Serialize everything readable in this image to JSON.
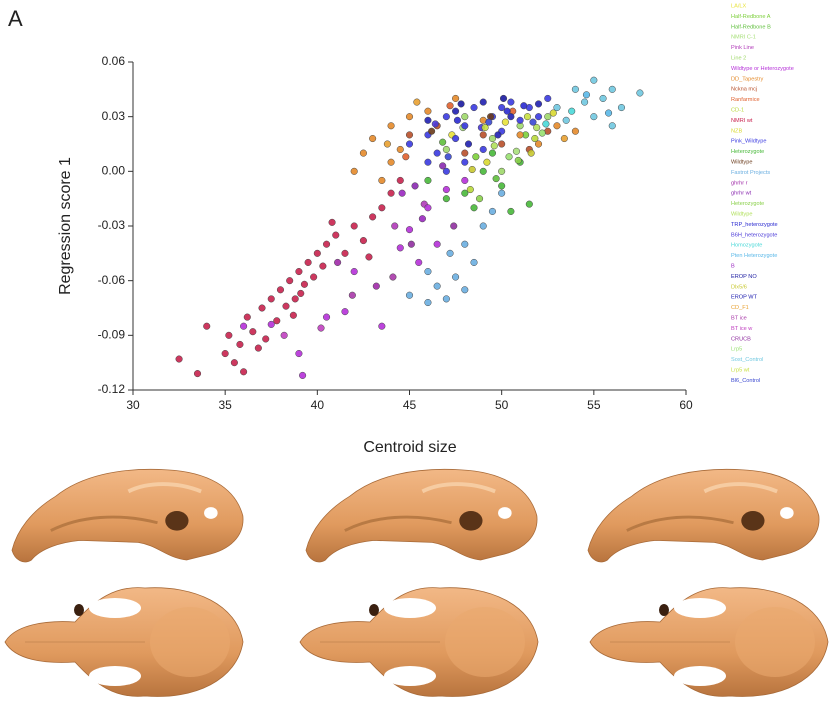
{
  "chart_data": {
    "type": "scatter",
    "panel_label": "A",
    "xlabel": "Centroid size",
    "ylabel": "Regression score 1",
    "xlim": [
      30,
      60
    ],
    "xticks": [
      30,
      35,
      40,
      45,
      50,
      55,
      60
    ],
    "ylim": [
      -0.12,
      0.06
    ],
    "yticks": [
      0.06,
      0.03,
      {
        "value": 0,
        "label": "0.00"
      },
      -0.03,
      -0.06,
      -0.09,
      -0.12
    ],
    "series": [
      {
        "name": "LA/LX",
        "color": "#e8e23a",
        "x": [
          47.3,
          50.2
        ],
        "y": [
          0.02,
          0.027
        ]
      },
      {
        "name": "Half-Redbone A",
        "color": "#7ccf3a",
        "x": [
          48.6,
          51.3
        ],
        "y": [
          0.008,
          0.02
        ]
      },
      {
        "name": "Half-Redbone B",
        "color": "#5fbf3c",
        "x": [
          46.8,
          49.7
        ],
        "y": [
          0.016,
          -0.004
        ]
      },
      {
        "name": "NMRI C-1",
        "color": "#a8e07a",
        "x": [
          47.9,
          50.8
        ],
        "y": [
          0.024,
          0.011
        ]
      },
      {
        "name": "Pink Line",
        "color": "#b03ab8",
        "x": [
          44.2,
          45.8
        ],
        "y": [
          -0.03,
          -0.018
        ]
      },
      {
        "name": "Line 2",
        "color": "#9fd86a",
        "x": [
          47,
          48,
          49.5,
          51,
          52.5,
          50
        ],
        "y": [
          0.012,
          0.03,
          0.018,
          0.025,
          0.03,
          0
        ]
      },
      {
        "name": "Wildtype or Heterozygote",
        "color": "#b530d8",
        "x": [
          36,
          37.5,
          39,
          39.2,
          40.5,
          41.5,
          43.5,
          42,
          44.5,
          45,
          46,
          47,
          48,
          46.5,
          45.5
        ],
        "y": [
          -0.085,
          -0.084,
          -0.1,
          -0.112,
          -0.08,
          -0.077,
          -0.085,
          -0.055,
          -0.042,
          -0.032,
          -0.02,
          -0.01,
          -0.005,
          -0.04,
          -0.05
        ]
      },
      {
        "name": "DD_Tapestry",
        "color": "#e48a2a",
        "x": [
          42,
          42.5,
          43,
          44,
          44.5,
          45,
          46,
          47.5,
          49,
          51,
          52,
          53,
          54,
          44,
          43.5
        ],
        "y": [
          0,
          0.01,
          0.018,
          0.025,
          0.012,
          0.03,
          0.033,
          0.04,
          0.028,
          0.02,
          0.015,
          0.025,
          0.022,
          0.005,
          -0.005
        ]
      },
      {
        "name": "Nckna mcj",
        "color": "#b8502a",
        "x": [
          45,
          46.5,
          48,
          50,
          51.5,
          52.5,
          49
        ],
        "y": [
          0.02,
          0.025,
          0.01,
          0.015,
          0.012,
          0.022,
          0.02
        ]
      },
      {
        "name": "Ranfarmice",
        "color": "#e0602e",
        "x": [
          44.8,
          47.2,
          50.6
        ],
        "y": [
          0.008,
          0.036,
          0.033
        ]
      },
      {
        "name": "CD-1",
        "color": "#b8d83a",
        "x": [
          48.3,
          51.8
        ],
        "y": [
          -0.01,
          0.018
        ]
      },
      {
        "name": "NMRI wt",
        "color": "#c8224e",
        "x": [
          32.5,
          33.5,
          34,
          35,
          35.2,
          35.8,
          36,
          36.2,
          36.5,
          37,
          37.2,
          37.5,
          37.8,
          38,
          38.3,
          38.5,
          38.8,
          39,
          39.3,
          39.5,
          39.8,
          40,
          40.3,
          40.5,
          41,
          41.5,
          42,
          42.5,
          43,
          43.5,
          44,
          44.5,
          36.8,
          35.5,
          38.7,
          40.8,
          42.8,
          39.1
        ],
        "y": [
          -0.103,
          -0.111,
          -0.085,
          -0.1,
          -0.09,
          -0.095,
          -0.11,
          -0.08,
          -0.088,
          -0.075,
          -0.092,
          -0.07,
          -0.082,
          -0.065,
          -0.074,
          -0.06,
          -0.07,
          -0.055,
          -0.062,
          -0.05,
          -0.058,
          -0.045,
          -0.052,
          -0.04,
          -0.035,
          -0.045,
          -0.03,
          -0.038,
          -0.025,
          -0.02,
          -0.012,
          -0.005,
          -0.097,
          -0.105,
          -0.079,
          -0.028,
          -0.047,
          -0.067
        ]
      },
      {
        "name": "NZB",
        "color": "#d8d830",
        "x": [
          49.2,
          52.8
        ],
        "y": [
          0.005,
          0.032
        ]
      },
      {
        "name": "Pink_Wildtype",
        "color": "#3a3ae0",
        "x": [
          45,
          46,
          46.5,
          47,
          47.5,
          48,
          48.5,
          49,
          49.5,
          50,
          50.5,
          51,
          51.5,
          52,
          52.5,
          48,
          47,
          46,
          50
        ],
        "y": [
          0.015,
          0.02,
          0.01,
          0.03,
          0.018,
          0.025,
          0.035,
          0.012,
          0.03,
          0.022,
          0.038,
          0.028,
          0.035,
          0.03,
          0.04,
          0.005,
          0,
          0.005,
          0.035
        ]
      },
      {
        "name": "Heterozygote",
        "color": "#48b83a",
        "x": [
          46,
          47,
          48,
          49,
          50,
          51,
          51.5,
          50.5,
          49.5,
          48.5
        ],
        "y": [
          -0.005,
          -0.015,
          -0.012,
          0,
          -0.008,
          0.005,
          -0.018,
          -0.022,
          0.01,
          -0.02
        ]
      },
      {
        "name": "Wildtype",
        "color": "#6a3a1a",
        "x": [
          46.2,
          49.4
        ],
        "y": [
          0.022,
          0.03
        ]
      },
      {
        "name": "Fastrot Projects",
        "color": "#6aaee0",
        "x": [
          45,
          46,
          46.5,
          47,
          47.5,
          48,
          48.5,
          48,
          49,
          49.5,
          50,
          47.2,
          46
        ],
        "y": [
          -0.068,
          -0.072,
          -0.063,
          -0.07,
          -0.058,
          -0.065,
          -0.05,
          -0.04,
          -0.03,
          -0.022,
          -0.012,
          -0.045,
          -0.055
        ]
      },
      {
        "name": "ghrhr r",
        "color": "#a02aa8",
        "x": [
          43.2,
          41.1
        ],
        "y": [
          -0.063,
          -0.05
        ]
      },
      {
        "name": "ghrhr wt",
        "color": "#8a2ab0",
        "x": [
          45.3,
          46.8
        ],
        "y": [
          -0.008,
          0.003
        ]
      },
      {
        "name": "Heterozygote",
        "color": "#8ad04a",
        "x": [
          48.8,
          50.9
        ],
        "y": [
          -0.015,
          0.006
        ]
      },
      {
        "name": "Wildtype",
        "color": "#b0e05a",
        "x": [
          49.6,
          51.9
        ],
        "y": [
          0.014,
          0.024
        ]
      },
      {
        "name": "TRP_heterozygote",
        "color": "#2a2ad0",
        "x": [
          47.6,
          50.3,
          51.2
        ],
        "y": [
          0.028,
          0.033,
          0.036
        ]
      },
      {
        "name": "B6H_heterozygote",
        "color": "#4a3ad8",
        "x": [
          46.4,
          48.9
        ],
        "y": [
          0.026,
          0.024
        ]
      },
      {
        "name": "Homozygote",
        "color": "#4ad8d8",
        "x": [
          53.8,
          52.4
        ],
        "y": [
          0.033,
          0.026
        ]
      },
      {
        "name": "Pten Heterozygote",
        "color": "#5ab8e8",
        "x": [
          54.6,
          55.8
        ],
        "y": [
          0.042,
          0.032
        ]
      },
      {
        "name": "B",
        "color": "#9a28c0",
        "x": [
          44.6,
          45.7
        ],
        "y": [
          -0.012,
          -0.026
        ]
      },
      {
        "name": "EROP NO",
        "color": "#1a1aa0",
        "x": [
          47.8,
          50.1
        ],
        "y": [
          0.037,
          0.04
        ]
      },
      {
        "name": "Dlx5/6",
        "color": "#c8c830",
        "x": [
          48.4,
          51.6
        ],
        "y": [
          0.001,
          0.01
        ]
      },
      {
        "name": "EROP WT",
        "color": "#2020b0",
        "x": [
          46,
          47.5,
          49,
          50.5,
          52,
          48.2,
          49.8
        ],
        "y": [
          0.028,
          0.033,
          0.038,
          0.03,
          0.037,
          0.015,
          0.02
        ]
      },
      {
        "name": "CD_F1",
        "color": "#e8a030",
        "x": [
          43.8,
          45.4,
          53.4
        ],
        "y": [
          0.015,
          0.038,
          0.018
        ]
      },
      {
        "name": "BT ice",
        "color": "#a838a8",
        "x": [
          41.9,
          44.1
        ],
        "y": [
          -0.068,
          -0.058
        ]
      },
      {
        "name": "BT ice w",
        "color": "#c040c0",
        "x": [
          38.2,
          40.2
        ],
        "y": [
          -0.09,
          -0.086
        ]
      },
      {
        "name": "CRUCB",
        "color": "#9030a0",
        "x": [
          45.1,
          47.4
        ],
        "y": [
          -0.04,
          -0.03
        ]
      },
      {
        "name": "Lrp5",
        "color": "#98e070",
        "x": [
          50.4,
          52.2
        ],
        "y": [
          0.008,
          0.021
        ]
      },
      {
        "name": "Sost_Control",
        "color": "#70c8e0",
        "x": [
          53,
          54,
          54.5,
          55,
          55.5,
          56,
          56.5,
          57.5,
          55,
          53.5,
          56
        ],
        "y": [
          0.035,
          0.045,
          0.038,
          0.05,
          0.04,
          0.045,
          0.035,
          0.043,
          0.03,
          0.028,
          0.025
        ]
      },
      {
        "name": "Lrp5 wt",
        "color": "#c8e040",
        "x": [
          49.1,
          51.4
        ],
        "y": [
          0.024,
          0.03
        ]
      },
      {
        "name": "Bl6_Control",
        "color": "#3a48d0",
        "x": [
          47.1,
          49.3,
          51.7
        ],
        "y": [
          0.008,
          0.027,
          0.027
        ]
      }
    ]
  }
}
